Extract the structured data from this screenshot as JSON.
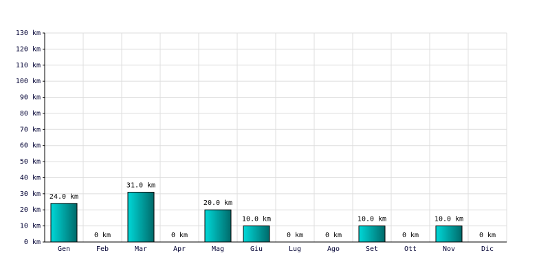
{
  "chart_data": {
    "type": "bar",
    "categories": [
      "Gen",
      "Feb",
      "Mar",
      "Apr",
      "Mag",
      "Giu",
      "Lug",
      "Ago",
      "Set",
      "Ott",
      "Nov",
      "Dic"
    ],
    "values": [
      24,
      0,
      31,
      0,
      20,
      10,
      0,
      0,
      10,
      0,
      10,
      0
    ],
    "value_labels": [
      "24.0 km",
      "0 km",
      "31.0 km",
      "0 km",
      "20.0 km",
      "10.0 km",
      "0 km",
      "0 km",
      "10.0 km",
      "0 km",
      "10.0 km",
      "0 km"
    ],
    "color": "#00d8d8",
    "ylim": [
      0,
      130
    ],
    "yticks": [
      {
        "value": 0,
        "label": "0 km"
      },
      {
        "value": 10,
        "label": "10 km"
      },
      {
        "value": 20,
        "label": "20 km"
      },
      {
        "value": 30,
        "label": "30 km"
      },
      {
        "value": 40,
        "label": "40 km"
      },
      {
        "value": 50,
        "label": "50 km"
      },
      {
        "value": 60,
        "label": "60 km"
      },
      {
        "value": 70,
        "label": "70 km"
      },
      {
        "value": 80,
        "label": "80 km"
      },
      {
        "value": 90,
        "label": "90 km"
      },
      {
        "value": 100,
        "label": "100 km"
      },
      {
        "value": 110,
        "label": "110 km"
      },
      {
        "value": 120,
        "label": "120 km"
      },
      {
        "value": 130,
        "label": "130 km"
      }
    ],
    "grid": true
  }
}
